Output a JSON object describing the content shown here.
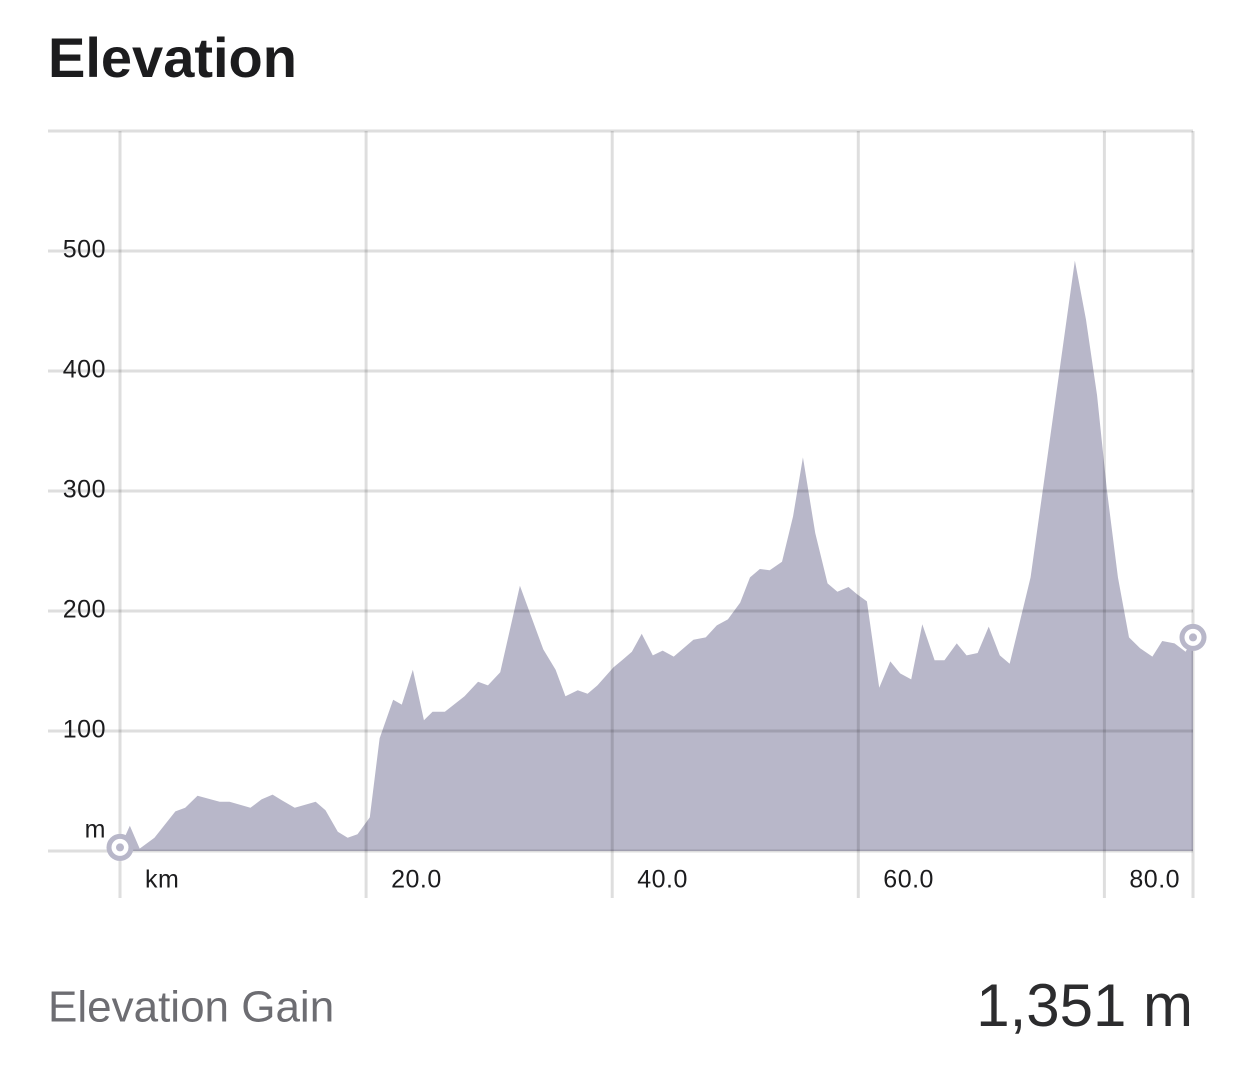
{
  "chart_data": {
    "type": "area",
    "title": "Elevation",
    "x": [
      0,
      0.8,
      1.6,
      2.8,
      4.5,
      5.3,
      6.3,
      8.1,
      8.9,
      10.6,
      11.5,
      12.4,
      13.2,
      14.2,
      15.9,
      16.7,
      17.7,
      18.5,
      19.3,
      20.3,
      21.1,
      22.2,
      22.9,
      23.8,
      24.7,
      25.4,
      26.4,
      28.0,
      29.1,
      29.9,
      30.9,
      32.5,
      34.4,
      35.4,
      36.2,
      37.2,
      38.0,
      38.8,
      40.1,
      40.8,
      41.6,
      42.4,
      43.3,
      44.1,
      45.0,
      46.6,
      47.6,
      48.5,
      49.4,
      50.4,
      51.2,
      52.0,
      52.8,
      53.8,
      54.7,
      55.5,
      56.5,
      57.5,
      58.3,
      59.2,
      59.9,
      60.7,
      61.7,
      62.6,
      63.4,
      64.3,
      65.2,
      66.2,
      67.0,
      68.0,
      68.8,
      69.7,
      70.6,
      71.5,
      72.3,
      74.0,
      77.6,
      78.5,
      79.4,
      80.2,
      81.1,
      82.0,
      82.9,
      83.9,
      84.7,
      85.7,
      86.6,
      87.2
    ],
    "values": [
      3,
      21,
      2,
      11,
      33,
      36,
      46,
      41,
      41,
      36,
      43,
      47,
      42,
      36,
      41,
      34,
      16,
      11,
      14,
      28,
      94,
      126,
      122,
      151,
      109,
      116,
      116,
      129,
      141,
      138,
      149,
      221,
      168,
      151,
      129,
      134,
      131,
      138,
      153,
      159,
      166,
      181,
      163,
      167,
      162,
      176,
      178,
      188,
      193,
      207,
      228,
      235,
      234,
      241,
      279,
      328,
      265,
      223,
      216,
      220,
      214,
      208,
      136,
      158,
      148,
      143,
      189,
      159,
      159,
      173,
      163,
      165,
      187,
      163,
      156,
      228,
      492,
      443,
      380,
      301,
      228,
      178,
      169,
      162,
      175,
      173,
      166,
      178
    ],
    "color": "#b8b7c9",
    "xlim": [
      0,
      87.2
    ],
    "ylim": [
      0,
      600
    ],
    "xticks": [
      {
        "value": 0,
        "label": "km"
      },
      {
        "value": 20,
        "label": "20.0"
      },
      {
        "value": 40,
        "label": "40.0"
      },
      {
        "value": 60,
        "label": "60.0"
      },
      {
        "value": 80,
        "label": "80.0"
      }
    ],
    "yticks": [
      {
        "value": 0,
        "label": "m"
      },
      100,
      200,
      300,
      400,
      500
    ],
    "grid": true
  },
  "summary": {
    "label": "Elevation Gain",
    "value": "1,351 m"
  }
}
